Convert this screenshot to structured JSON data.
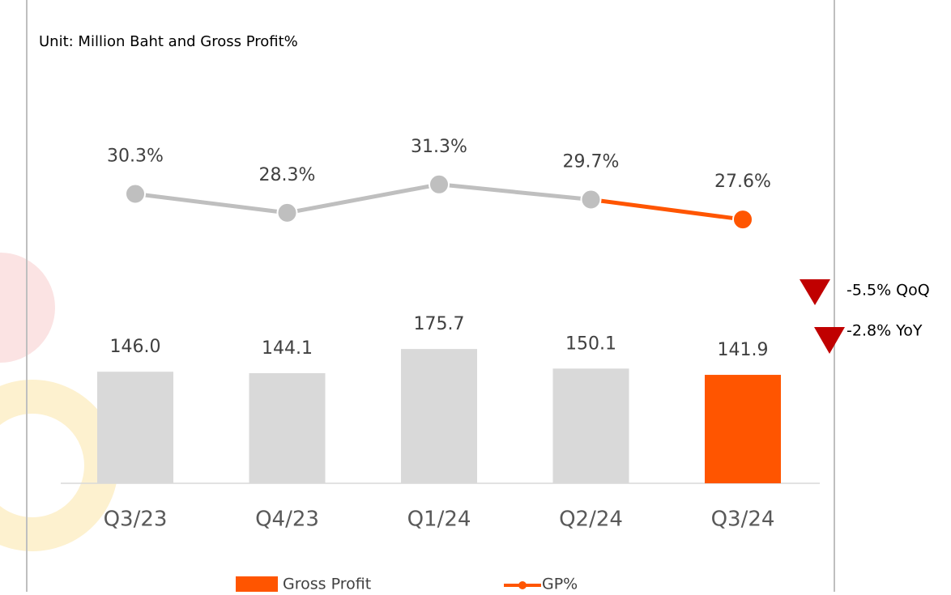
{
  "chart_data": {
    "type": "bar_line",
    "title": "Unit: Million Baht and Gross Profit%",
    "categories": [
      "Q3/23",
      "Q4/23",
      "Q1/24",
      "Q2/24",
      "Q3/24"
    ],
    "series": [
      {
        "name": "Gross Profit",
        "type": "bar",
        "color": "#ff5500",
        "point_colors": [
          "#d9d9d9",
          "#d9d9d9",
          "#d9d9d9",
          "#d9d9d9",
          "#ff5500"
        ],
        "values": [
          146.0,
          144.1,
          175.7,
          150.1,
          141.9
        ],
        "value_labels": [
          "146.0",
          "144.1",
          "175.7",
          "150.1",
          "141.9"
        ]
      },
      {
        "name": "GP%",
        "type": "line",
        "axis": "y2",
        "color": "#ff5500",
        "point_colors": [
          "#bfbfbf",
          "#bfbfbf",
          "#bfbfbf",
          "#bfbfbf",
          "#ff5500"
        ],
        "values": [
          30.3,
          28.3,
          31.3,
          29.7,
          27.6
        ],
        "value_labels": [
          "30.3%",
          "28.3%",
          "31.3%",
          "29.7%",
          "27.6%"
        ]
      }
    ],
    "ylim": [
      0,
      250
    ],
    "y2lim": [
      20,
      35
    ],
    "annotations": [
      "-5.5% QoQ",
      "-2.8% YoY"
    ]
  }
}
